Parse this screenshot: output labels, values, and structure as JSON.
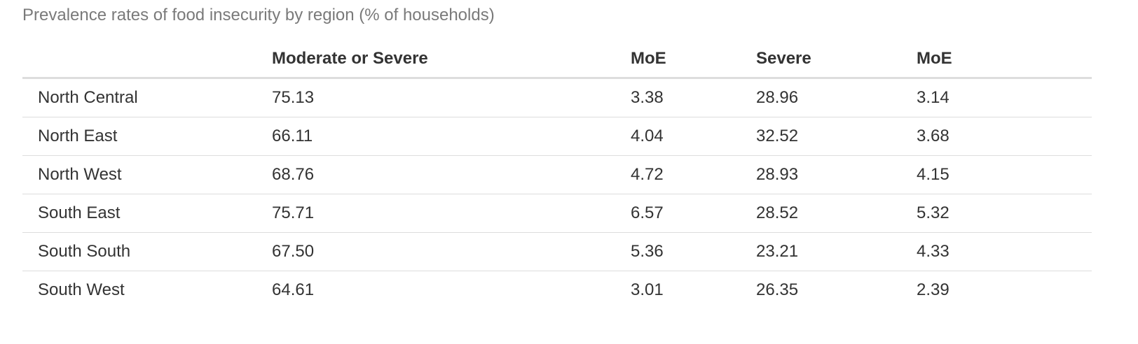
{
  "caption": "Prevalence rates of food insecurity by region (% of households)",
  "table": {
    "headers": [
      "",
      "Moderate or Severe",
      "MoE",
      "Severe",
      "MoE"
    ],
    "rows": [
      [
        "North Central",
        "75.13",
        "3.38",
        "28.96",
        "3.14"
      ],
      [
        "North East",
        "66.11",
        "4.04",
        "32.52",
        "3.68"
      ],
      [
        "North West",
        "68.76",
        "4.72",
        "28.93",
        "4.15"
      ],
      [
        "South East",
        "75.71",
        "6.57",
        "28.52",
        "5.32"
      ],
      [
        "South South",
        "67.50",
        "5.36",
        "23.21",
        "4.33"
      ],
      [
        "South West",
        "64.61",
        "3.01",
        "26.35",
        "2.39"
      ]
    ]
  },
  "chart_data": {
    "type": "table",
    "title": "Prevalence rates of food insecurity by region (% of households)",
    "columns": [
      "",
      "Moderate or Severe",
      "MoE",
      "Severe",
      "MoE"
    ],
    "categories": [
      "North Central",
      "North East",
      "North West",
      "South East",
      "South South",
      "South West"
    ],
    "series": [
      {
        "name": "Moderate or Severe",
        "values": [
          75.13,
          66.11,
          68.76,
          75.71,
          67.5,
          64.61
        ]
      },
      {
        "name": "MoE",
        "values": [
          3.38,
          4.04,
          4.72,
          6.57,
          5.36,
          3.01
        ]
      },
      {
        "name": "Severe",
        "values": [
          28.96,
          32.52,
          28.93,
          28.52,
          23.21,
          26.35
        ]
      },
      {
        "name": "MoE",
        "values": [
          3.14,
          3.68,
          4.15,
          5.32,
          4.33,
          2.39
        ]
      }
    ]
  }
}
